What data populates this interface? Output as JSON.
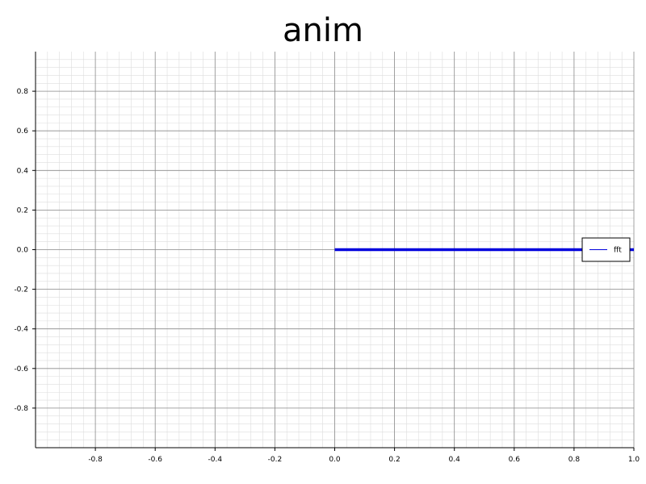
{
  "chart_data": {
    "type": "line",
    "title": "anim",
    "xlabel": "",
    "ylabel": "",
    "xlim": [
      -1.0,
      1.0
    ],
    "ylim": [
      -1.0,
      1.0
    ],
    "x_ticks": [
      -0.8,
      -0.6,
      -0.4,
      -0.2,
      0.0,
      0.2,
      0.4,
      0.6,
      0.8,
      1.0
    ],
    "x_tick_labels": [
      "-0.8",
      "-0.6",
      "-0.4",
      "-0.2",
      "0.0",
      "0.2",
      "0.4",
      "0.6",
      "0.8",
      "1.0"
    ],
    "y_ticks": [
      -0.8,
      -0.6,
      -0.4,
      -0.2,
      0.0,
      0.2,
      0.4,
      0.6,
      0.8
    ],
    "y_tick_labels": [
      "-0.8",
      "-0.6",
      "-0.4",
      "-0.2",
      "0.0",
      "0.2",
      "0.4",
      "0.6",
      "0.8"
    ],
    "grid": true,
    "minor_grid": true,
    "legend_position": "right",
    "series": [
      {
        "name": "fft",
        "color": "#0000dd",
        "x": [
          0.0,
          1.0
        ],
        "y": [
          0.0,
          0.0
        ]
      }
    ]
  }
}
